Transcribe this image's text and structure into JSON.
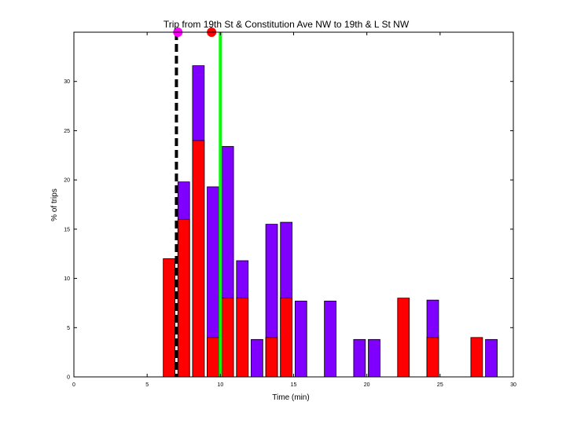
{
  "chart_data": {
    "type": "bar",
    "title": "Trip from 19th St & Constitution Ave NW to 19th & L St NW",
    "xlabel": "Time (min)",
    "ylabel": "% of trips",
    "xlim": [
      0,
      30
    ],
    "ylim": [
      0,
      35
    ],
    "xticks": [
      "0",
      "5",
      "10",
      "15",
      "20",
      "25",
      "30"
    ],
    "yticks": [
      "0",
      "5",
      "10",
      "15",
      "20",
      "25",
      "30"
    ],
    "grid": false,
    "colors": {
      "red_series": "#ff0000",
      "purple_series": "#8000ff",
      "green_line": "#00ff00",
      "black_dashed_line": "#000000",
      "magenta_marker": "#ff00ff",
      "red_marker": "#ff0000"
    },
    "red_bars": [
      {
        "x": 6.5,
        "value": 12
      },
      {
        "x": 7.5,
        "value": 16
      },
      {
        "x": 8.5,
        "value": 24
      },
      {
        "x": 9.5,
        "value": 4
      },
      {
        "x": 10.5,
        "value": 8
      },
      {
        "x": 11.5,
        "value": 8
      },
      {
        "x": 13.5,
        "value": 4
      },
      {
        "x": 14.5,
        "value": 8
      },
      {
        "x": 22.5,
        "value": 8
      },
      {
        "x": 24.5,
        "value": 4
      },
      {
        "x": 27.5,
        "value": 4
      }
    ],
    "purple_bars": [
      {
        "x": 7.5,
        "value": 19.8
      },
      {
        "x": 8.5,
        "value": 31.6
      },
      {
        "x": 9.5,
        "value": 19.3
      },
      {
        "x": 10.5,
        "value": 23.4
      },
      {
        "x": 11.5,
        "value": 11.8
      },
      {
        "x": 12.5,
        "value": 3.8
      },
      {
        "x": 13.5,
        "value": 15.5
      },
      {
        "x": 14.5,
        "value": 15.7
      },
      {
        "x": 15.5,
        "value": 7.7
      },
      {
        "x": 17.5,
        "value": 7.7
      },
      {
        "x": 19.5,
        "value": 3.8
      },
      {
        "x": 20.5,
        "value": 3.8
      },
      {
        "x": 24.5,
        "value": 7.8
      },
      {
        "x": 28.5,
        "value": 3.8
      }
    ],
    "vertical_lines": [
      {
        "x": 7.0,
        "style": "dashed",
        "color": "#000000"
      },
      {
        "x": 10.0,
        "style": "solid",
        "color": "#00ff00"
      }
    ],
    "markers": [
      {
        "x": 7.1,
        "y": 35,
        "color": "#ff00ff"
      },
      {
        "x": 9.4,
        "y": 35,
        "color": "#ff0000"
      }
    ]
  }
}
